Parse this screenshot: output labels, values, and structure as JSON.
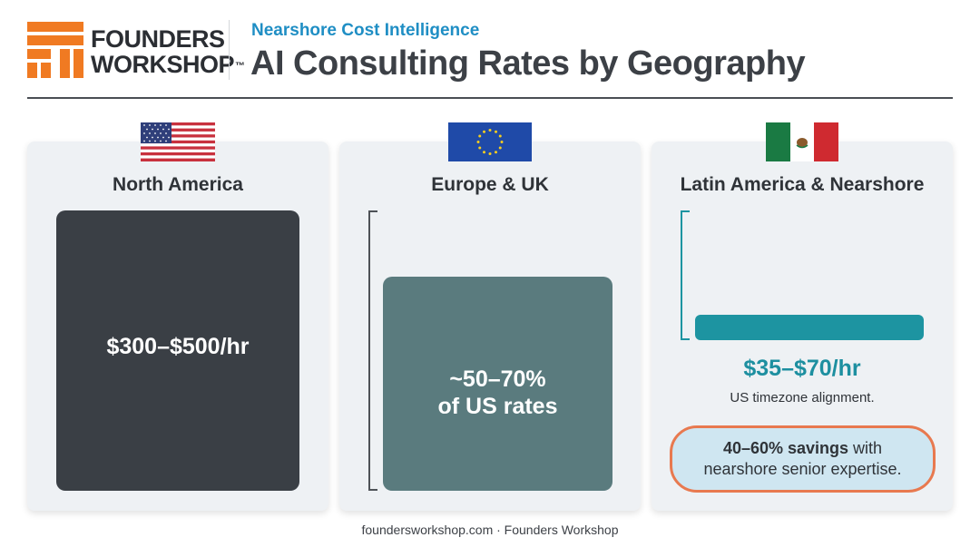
{
  "brand": {
    "line1": "FOUNDERS",
    "line2": "WORKSHOP",
    "tm": "™",
    "color": "#f07a22"
  },
  "header": {
    "subtitle": "Nearshore Cost Intelligence",
    "title": "AI Consulting Rates by Geography"
  },
  "chart_data": {
    "type": "bar",
    "title": "AI Consulting Rates by Geography",
    "categories": [
      "North America",
      "Europe & UK",
      "Latin America & Nearshore"
    ],
    "series": [
      {
        "values": [
          "$300–$500/hr",
          "~50–70% of US rates",
          "$35–$70/hr"
        ]
      }
    ],
    "colors": [
      "#3a3f45",
      "#5a7b7e",
      "#1d94a1"
    ],
    "grid": false,
    "legend": "none"
  },
  "cards": {
    "na": {
      "title": "North America",
      "flag": "us-flag-icon",
      "rate": "$300–$500/hr"
    },
    "eu": {
      "title": "Europe & UK",
      "flag": "eu-flag-icon",
      "rate_line1": "~50–70%",
      "rate_line2": "of US rates"
    },
    "latam": {
      "title": "Latin America & Nearshore",
      "flag": "mexico-flag-icon",
      "rate": "$35–$70/hr",
      "note": "US timezone alignment.",
      "savings_bold": "40–60% savings",
      "savings_rest1": " with",
      "savings_line2": "nearshore senior expertise."
    }
  },
  "footer": "foundersworkshop.com · Founders Workshop"
}
